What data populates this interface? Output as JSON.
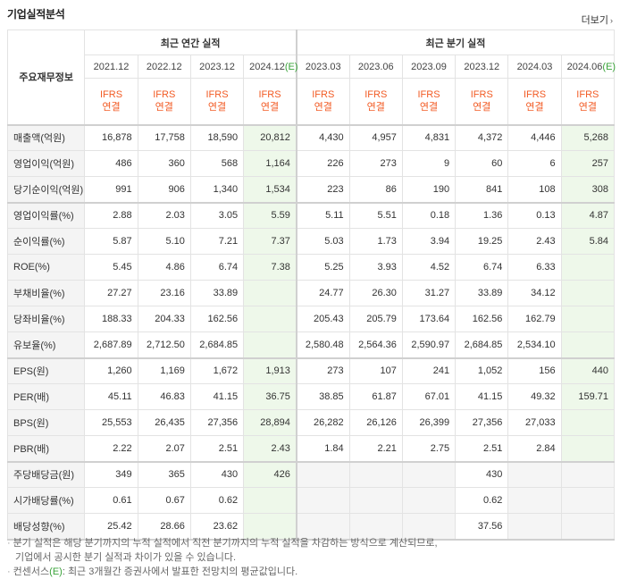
{
  "section": {
    "title": "기업실적분석",
    "more_label": "더보기"
  },
  "table": {
    "row_header_title": "주요재무정보",
    "groups": {
      "annual": "최근 연간 실적",
      "quarterly": "최근 분기 실적"
    },
    "periods": [
      {
        "label": "2021.12",
        "est": ""
      },
      {
        "label": "2022.12",
        "est": ""
      },
      {
        "label": "2023.12",
        "est": ""
      },
      {
        "label": "2024.12",
        "est": "(E)"
      },
      {
        "label": "2023.03",
        "est": ""
      },
      {
        "label": "2023.06",
        "est": ""
      },
      {
        "label": "2023.09",
        "est": ""
      },
      {
        "label": "2023.12",
        "est": ""
      },
      {
        "label": "2024.03",
        "est": ""
      },
      {
        "label": "2024.06",
        "est": "(E)"
      }
    ],
    "ifrs": {
      "line1": "IFRS",
      "line2": "연결"
    },
    "rows": [
      {
        "label": "매출액(억원)",
        "values": [
          "16,878",
          "17,758",
          "18,590",
          "20,812",
          "4,430",
          "4,957",
          "4,831",
          "4,372",
          "4,446",
          "5,268"
        ]
      },
      {
        "label": "영업이익(억원)",
        "values": [
          "486",
          "360",
          "568",
          "1,164",
          "226",
          "273",
          "9",
          "60",
          "6",
          "257"
        ]
      },
      {
        "label": "당기순이익(억원)",
        "values": [
          "991",
          "906",
          "1,340",
          "1,534",
          "223",
          "86",
          "190",
          "841",
          "108",
          "308"
        ]
      },
      {
        "label": "영업이익률(%)",
        "values": [
          "2.88",
          "2.03",
          "3.05",
          "5.59",
          "5.11",
          "5.51",
          "0.18",
          "1.36",
          "0.13",
          "4.87"
        ]
      },
      {
        "label": "순이익률(%)",
        "values": [
          "5.87",
          "5.10",
          "7.21",
          "7.37",
          "5.03",
          "1.73",
          "3.94",
          "19.25",
          "2.43",
          "5.84"
        ]
      },
      {
        "label": "ROE(%)",
        "values": [
          "5.45",
          "4.86",
          "6.74",
          "7.38",
          "5.25",
          "3.93",
          "4.52",
          "6.74",
          "6.33",
          ""
        ]
      },
      {
        "label": "부채비율(%)",
        "values": [
          "27.27",
          "23.16",
          "33.89",
          "",
          "24.77",
          "26.30",
          "31.27",
          "33.89",
          "34.12",
          ""
        ]
      },
      {
        "label": "당좌비율(%)",
        "values": [
          "188.33",
          "204.33",
          "162.56",
          "",
          "205.43",
          "205.79",
          "173.64",
          "162.56",
          "162.79",
          ""
        ]
      },
      {
        "label": "유보율(%)",
        "values": [
          "2,687.89",
          "2,712.50",
          "2,684.85",
          "",
          "2,580.48",
          "2,564.36",
          "2,590.97",
          "2,684.85",
          "2,534.10",
          ""
        ]
      },
      {
        "label": "EPS(원)",
        "values": [
          "1,260",
          "1,169",
          "1,672",
          "1,913",
          "273",
          "107",
          "241",
          "1,052",
          "156",
          "440"
        ]
      },
      {
        "label": "PER(배)",
        "values": [
          "45.11",
          "46.83",
          "41.15",
          "36.75",
          "38.85",
          "61.87",
          "67.01",
          "41.15",
          "49.32",
          "159.71"
        ]
      },
      {
        "label": "BPS(원)",
        "values": [
          "25,553",
          "26,435",
          "27,356",
          "28,894",
          "26,282",
          "26,126",
          "26,399",
          "27,356",
          "27,033",
          ""
        ]
      },
      {
        "label": "PBR(배)",
        "values": [
          "2.22",
          "2.07",
          "2.51",
          "2.43",
          "1.84",
          "2.21",
          "2.75",
          "2.51",
          "2.84",
          ""
        ]
      },
      {
        "label": "주당배당금(원)",
        "values": [
          "349",
          "365",
          "430",
          "426",
          "",
          "",
          "",
          "430",
          "",
          ""
        ]
      },
      {
        "label": "시가배당률(%)",
        "values": [
          "0.61",
          "0.67",
          "0.62",
          "",
          "",
          "",
          "",
          "0.62",
          "",
          ""
        ]
      },
      {
        "label": "배당성향(%)",
        "values": [
          "25.42",
          "28.66",
          "23.62",
          "",
          "",
          "",
          "",
          "37.56",
          "",
          ""
        ]
      }
    ]
  },
  "notes": {
    "line1": "분기 실적은 해당 분기까지의 누적 실적에서 직전 분기까지의 누적 실적을 차감하는 방식으로 계산되므로,",
    "line2": "기업에서 공시한 분기 실적과 차이가 있을 수 있습니다.",
    "line3_prefix": "컨센서스",
    "line3_mark": "(E)",
    "line3_rest": ": 최근 3개월간 증권사에서 발표한 전망치의 평균값입니다."
  }
}
